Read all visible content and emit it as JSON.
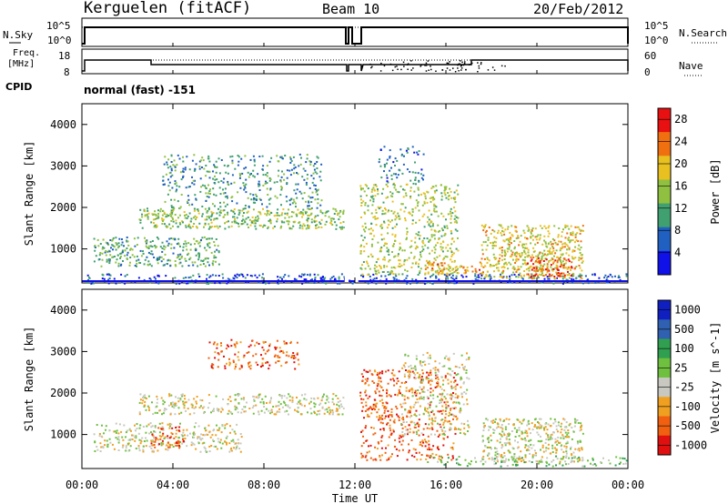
{
  "header": {
    "station": "Kerguelen (fitACF)",
    "beam": "Beam 10",
    "date": "20/Feb/2012"
  },
  "summary": {
    "nsky_label": "N.Sky",
    "nsearch_label": "N.Search",
    "nsky_ticks": [
      "10^5",
      "10^0"
    ],
    "nsearch_ticks": [
      "10^5",
      "10^0"
    ],
    "freq_label_1": "Freq.",
    "freq_label_2": "[MHz]",
    "freq_ticks": [
      "18",
      "8"
    ],
    "nave_label": "Nave",
    "nave_ticks": [
      "60",
      "0"
    ],
    "cpid_label": "CPID",
    "cpid_value": "normal (fast) -151"
  },
  "chart_data": [
    {
      "type": "heatmap",
      "name": "power",
      "ylabel": "Slant Range [km]",
      "xlabel": "Time UT",
      "ylim": [
        180,
        4500
      ],
      "xlim": [
        0,
        24
      ],
      "y_ticks": [
        "4000",
        "3000",
        "2000",
        "1000"
      ],
      "y_tick_values": [
        4000,
        3000,
        2000,
        1000
      ],
      "x_ticks": [
        "00:00",
        "04:00",
        "08:00",
        "12:00",
        "16:00",
        "20:00",
        "00:00"
      ],
      "x_tick_values": [
        0,
        4,
        8,
        12,
        16,
        20,
        24
      ],
      "colorbar": {
        "label": "Power [dB]",
        "ticks": [
          "28",
          "24",
          "20",
          "16",
          "12",
          "8",
          "4"
        ],
        "tick_values": [
          28,
          24,
          20,
          16,
          12,
          8,
          4
        ],
        "range": [
          0,
          30
        ],
        "colors": [
          "#1010e8",
          "#2060c0",
          "#40a070",
          "#90c040",
          "#e8c020",
          "#f07010",
          "#e81010"
        ]
      },
      "data_gaps_hours": [
        [
          11.55,
          11.72
        ],
        [
          12.0,
          12.15
        ]
      ],
      "regions": [
        {
          "t0": 0.1,
          "t1": 24.0,
          "r0": 180,
          "r1": 420,
          "level": 6,
          "density": 0.55
        },
        {
          "t0": 2.5,
          "t1": 11.5,
          "r0": 1500,
          "r1": 2000,
          "level": 14,
          "density": 0.7
        },
        {
          "t0": 3.5,
          "t1": 10.5,
          "r0": 2000,
          "r1": 3300,
          "level": 10,
          "density": 0.35
        },
        {
          "t0": 0.5,
          "t1": 6.0,
          "r0": 600,
          "r1": 1300,
          "level": 12,
          "density": 0.6
        },
        {
          "t0": 12.2,
          "t1": 16.5,
          "r0": 400,
          "r1": 2600,
          "level": 16,
          "density": 0.45
        },
        {
          "t0": 13.0,
          "t1": 15.0,
          "r0": 2600,
          "r1": 3500,
          "level": 8,
          "density": 0.3
        },
        {
          "t0": 15.0,
          "t1": 17.5,
          "r0": 400,
          "r1": 700,
          "level": 22,
          "density": 0.6
        },
        {
          "t0": 17.5,
          "t1": 22.0,
          "r0": 300,
          "r1": 1600,
          "level": 18,
          "density": 0.7
        },
        {
          "t0": 19.5,
          "t1": 21.5,
          "r0": 350,
          "r1": 800,
          "level": 26,
          "density": 0.75
        }
      ]
    },
    {
      "type": "heatmap",
      "name": "velocity",
      "ylabel": "Slant Range [km]",
      "xlabel": "Time UT",
      "ylim": [
        180,
        4500
      ],
      "xlim": [
        0,
        24
      ],
      "y_ticks": [
        "4000",
        "3000",
        "2000",
        "1000"
      ],
      "y_tick_values": [
        4000,
        3000,
        2000,
        1000
      ],
      "x_ticks": [
        "00:00",
        "04:00",
        "08:00",
        "12:00",
        "16:00",
        "20:00",
        "00:00"
      ],
      "x_tick_values": [
        0,
        4,
        8,
        12,
        16,
        20,
        24
      ],
      "colorbar": {
        "label": "Velocity [m s^-1]",
        "ticks": [
          "1000",
          "500",
          "100",
          "25",
          "-25",
          "-100",
          "-500",
          "-1000"
        ],
        "colors": [
          "#1020c0",
          "#3060b0",
          "#30a050",
          "#70c040",
          "#c8c8c0",
          "#f0a020",
          "#f06010",
          "#e01010"
        ]
      },
      "regions": [
        {
          "t0": 2.5,
          "t1": 11.5,
          "r0": 1500,
          "r1": 2000,
          "level": 4,
          "density": 0.55
        },
        {
          "t0": 5.5,
          "t1": 9.5,
          "r0": 2600,
          "r1": 3300,
          "level": 6,
          "density": 0.4
        },
        {
          "t0": 0.5,
          "t1": 7.0,
          "r0": 600,
          "r1": 1300,
          "level": 4,
          "density": 0.5
        },
        {
          "t0": 3.0,
          "t1": 4.5,
          "r0": 700,
          "r1": 1200,
          "level": 6,
          "density": 0.6
        },
        {
          "t0": 12.2,
          "t1": 16.5,
          "r0": 400,
          "r1": 2600,
          "level": 6,
          "density": 0.4
        },
        {
          "t0": 14.0,
          "t1": 17.0,
          "r0": 1000,
          "r1": 3000,
          "level": 4,
          "density": 0.35
        },
        {
          "t0": 17.5,
          "t1": 22.0,
          "r0": 350,
          "r1": 1400,
          "level": 4,
          "density": 0.65
        },
        {
          "t0": 15.0,
          "t1": 24.0,
          "r0": 250,
          "r1": 500,
          "level": 3,
          "density": 0.35
        }
      ]
    }
  ]
}
